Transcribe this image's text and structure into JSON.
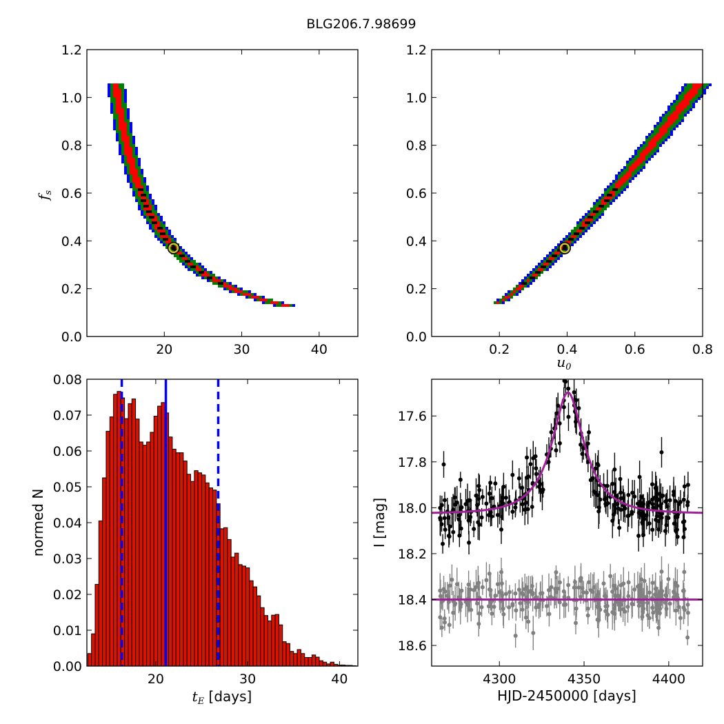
{
  "figure_title": "BLG206.7.98699",
  "colors": {
    "contour_outer": "#0000ff",
    "contour_mid": "#008000",
    "contour_inner": "#ff0000",
    "contour_core": "#000000",
    "best_fit_marker_ring": "#d4c42a",
    "hist_bar": "#dd1100",
    "vline": "#0000ff",
    "model_curve": "#a0209a",
    "lc_primary": "#000000",
    "lc_residual": "#808080"
  },
  "chart_data": [
    {
      "id": "tE_fs",
      "type": "heatmap",
      "xlabel": "",
      "ylabel": "f_s",
      "ylabel_main": "f",
      "ylabel_sub": "s",
      "xlim": [
        10,
        45
      ],
      "ylim": [
        0.0,
        1.2
      ],
      "xticks": [
        "20",
        "30",
        "40"
      ],
      "yticks": [
        "0.0",
        "0.2",
        "0.4",
        "0.6",
        "0.8",
        "1.0",
        "1.2"
      ],
      "xtick_values": [
        20,
        30,
        40
      ],
      "ytick_values": [
        0.0,
        0.2,
        0.4,
        0.6,
        0.8,
        1.0,
        1.2
      ],
      "model": {
        "form": "x = 5.6 / (fs + 0.08) + 8.8",
        "fs_range": [
          0.13,
          1.06
        ]
      },
      "best_fit": {
        "x": 21.2,
        "y": 0.37
      }
    },
    {
      "id": "u0_fs",
      "type": "heatmap",
      "xlabel": "u_0",
      "xlabel_main": "u",
      "xlabel_sub": "0",
      "ylabel": "",
      "xlim": [
        0.0,
        0.8
      ],
      "ylim": [
        0.0,
        1.2
      ],
      "xticks": [
        "0.2",
        "0.4",
        "0.6",
        "0.8"
      ],
      "yticks": [
        "0.0",
        "0.2",
        "0.4",
        "0.6",
        "0.8",
        "1.0",
        "1.2"
      ],
      "xtick_values": [
        0.2,
        0.4,
        0.6,
        0.8
      ],
      "ytick_values": [
        0.0,
        0.2,
        0.4,
        0.6,
        0.8,
        1.0,
        1.2
      ],
      "model": {
        "form": "x = 0.18 + 0.61 * ((fs - 0.13) / 0.93)^0.8",
        "fs_range": [
          0.13,
          1.06
        ]
      },
      "best_fit": {
        "x": 0.393,
        "y": 0.37
      }
    },
    {
      "id": "tE_hist",
      "type": "bar",
      "xlabel": "t_E [days]",
      "xlabel_main": "t",
      "xlabel_sub": "E",
      "xlabel_rest": " [days]",
      "ylabel": "normed N",
      "xlim": [
        12.5,
        42
      ],
      "ylim": [
        0.0,
        0.08
      ],
      "xticks": [
        "20",
        "30",
        "40"
      ],
      "yticks": [
        "0.00",
        "0.01",
        "0.02",
        "0.03",
        "0.04",
        "0.05",
        "0.06",
        "0.07",
        "0.08"
      ],
      "xtick_values": [
        20,
        30,
        40
      ],
      "ytick_values": [
        0.0,
        0.01,
        0.02,
        0.03,
        0.04,
        0.05,
        0.06,
        0.07,
        0.08
      ],
      "bin_start": 12.6,
      "bin_width": 0.4,
      "values": [
        0.0035,
        0.009,
        0.0228,
        0.0405,
        0.0525,
        0.0655,
        0.0695,
        0.0758,
        0.0766,
        0.0748,
        0.069,
        0.0732,
        0.0745,
        0.0689,
        0.0625,
        0.0616,
        0.0625,
        0.0652,
        0.0697,
        0.0725,
        0.0735,
        0.0706,
        0.0639,
        0.0605,
        0.0595,
        0.0595,
        0.0572,
        0.0535,
        0.0515,
        0.0545,
        0.0539,
        0.0533,
        0.0511,
        0.0497,
        0.0491,
        0.0453,
        0.0383,
        0.0386,
        0.0353,
        0.0304,
        0.0315,
        0.0283,
        0.0279,
        0.0274,
        0.0238,
        0.0221,
        0.0196,
        0.0163,
        0.0141,
        0.0126,
        0.0142,
        0.0144,
        0.0115,
        0.0068,
        0.0063,
        0.0041,
        0.0035,
        0.0046,
        0.0035,
        0.0024,
        0.0024,
        0.0031,
        0.0025,
        0.0015,
        0.0011,
        0.0006,
        0.0011,
        0.0005,
        0.0003,
        0.0003,
        0.0002,
        0.0002,
        0.0001
      ],
      "vlines": [
        {
          "x": 16.3,
          "style": "dashed"
        },
        {
          "x": 21.1,
          "style": "solid"
        },
        {
          "x": 26.8,
          "style": "dashed"
        }
      ]
    },
    {
      "id": "lightcurve",
      "type": "scatter",
      "xlabel": "HJD-2450000 [days]",
      "ylabel": "I [mag]",
      "xlim": [
        4260,
        4420
      ],
      "ylim": [
        18.69,
        17.44
      ],
      "y_inverted": true,
      "xticks": [
        "4300",
        "4350",
        "4400"
      ],
      "yticks": [
        "17.6",
        "17.8",
        "18.0",
        "18.2",
        "18.4",
        "18.6"
      ],
      "xtick_values": [
        4300,
        4350,
        4400
      ],
      "ytick_values": [
        17.6,
        17.8,
        18.0,
        18.2,
        18.4,
        18.6
      ],
      "model": {
        "baseline_mag": 18.025,
        "t0": 4340.5,
        "tE": 21.1,
        "u0": 0.393,
        "fs": 0.37
      },
      "residual_baseline_mag": 18.4,
      "data_x_range": [
        4265,
        4412
      ],
      "n_points": 260
    }
  ]
}
